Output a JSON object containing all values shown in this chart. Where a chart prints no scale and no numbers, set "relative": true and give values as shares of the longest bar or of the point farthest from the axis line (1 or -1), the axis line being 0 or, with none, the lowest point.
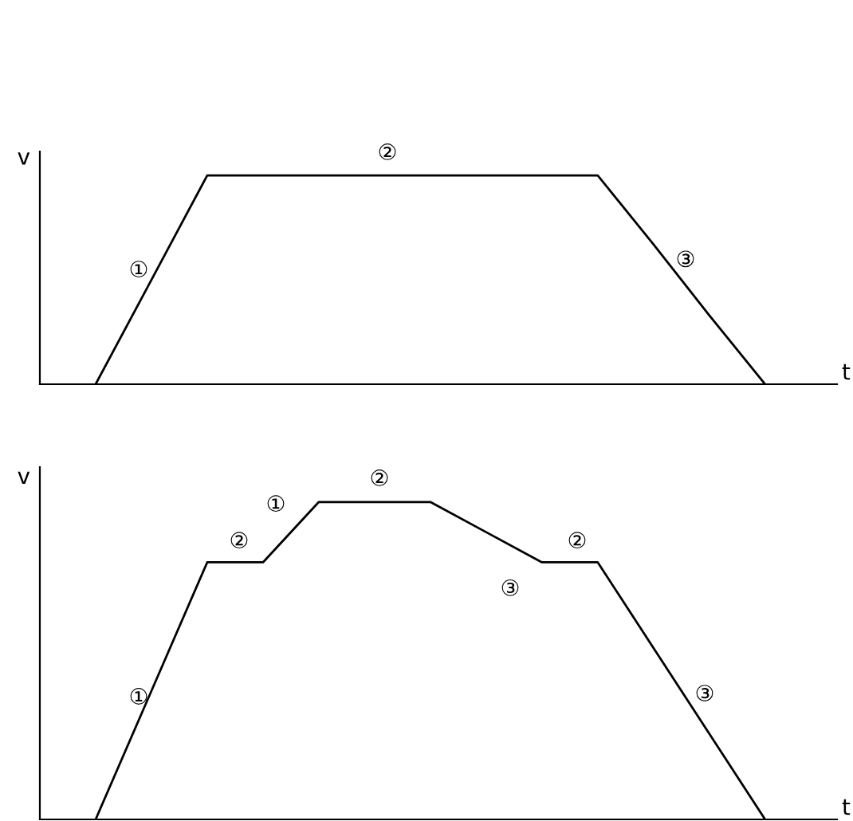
{
  "chart_data": [
    {
      "type": "line",
      "relative": true,
      "xlabel": "t",
      "ylabel": "v",
      "categories": [
        null,
        null,
        null,
        null,
        null,
        null,
        null,
        null,
        null,
        null,
        null,
        null,
        null,
        null
      ],
      "series": [
        {
          "color": "#000000",
          "values": [
            null,
            0,
            0.5,
            1,
            1,
            1,
            1,
            1,
            1,
            1,
            1,
            0.67,
            0.33,
            0
          ]
        }
      ],
      "annotations": [
        "①",
        "②",
        "③"
      ]
    },
    {
      "type": "line",
      "relative": true,
      "xlabel": "t",
      "ylabel": "v",
      "categories": [
        null,
        null,
        null,
        null,
        null,
        null,
        null,
        null,
        null,
        null,
        null,
        null,
        null,
        null
      ],
      "series": [
        {
          "color": "#000000",
          "values": [
            null,
            0,
            0.405,
            0.81,
            0.81,
            1,
            1,
            1,
            0.905,
            0.81,
            0.81,
            0.54,
            0.27,
            0
          ]
        }
      ],
      "annotations": [
        "①",
        "②",
        "①",
        "②",
        "③",
        "②",
        "③"
      ]
    }
  ]
}
